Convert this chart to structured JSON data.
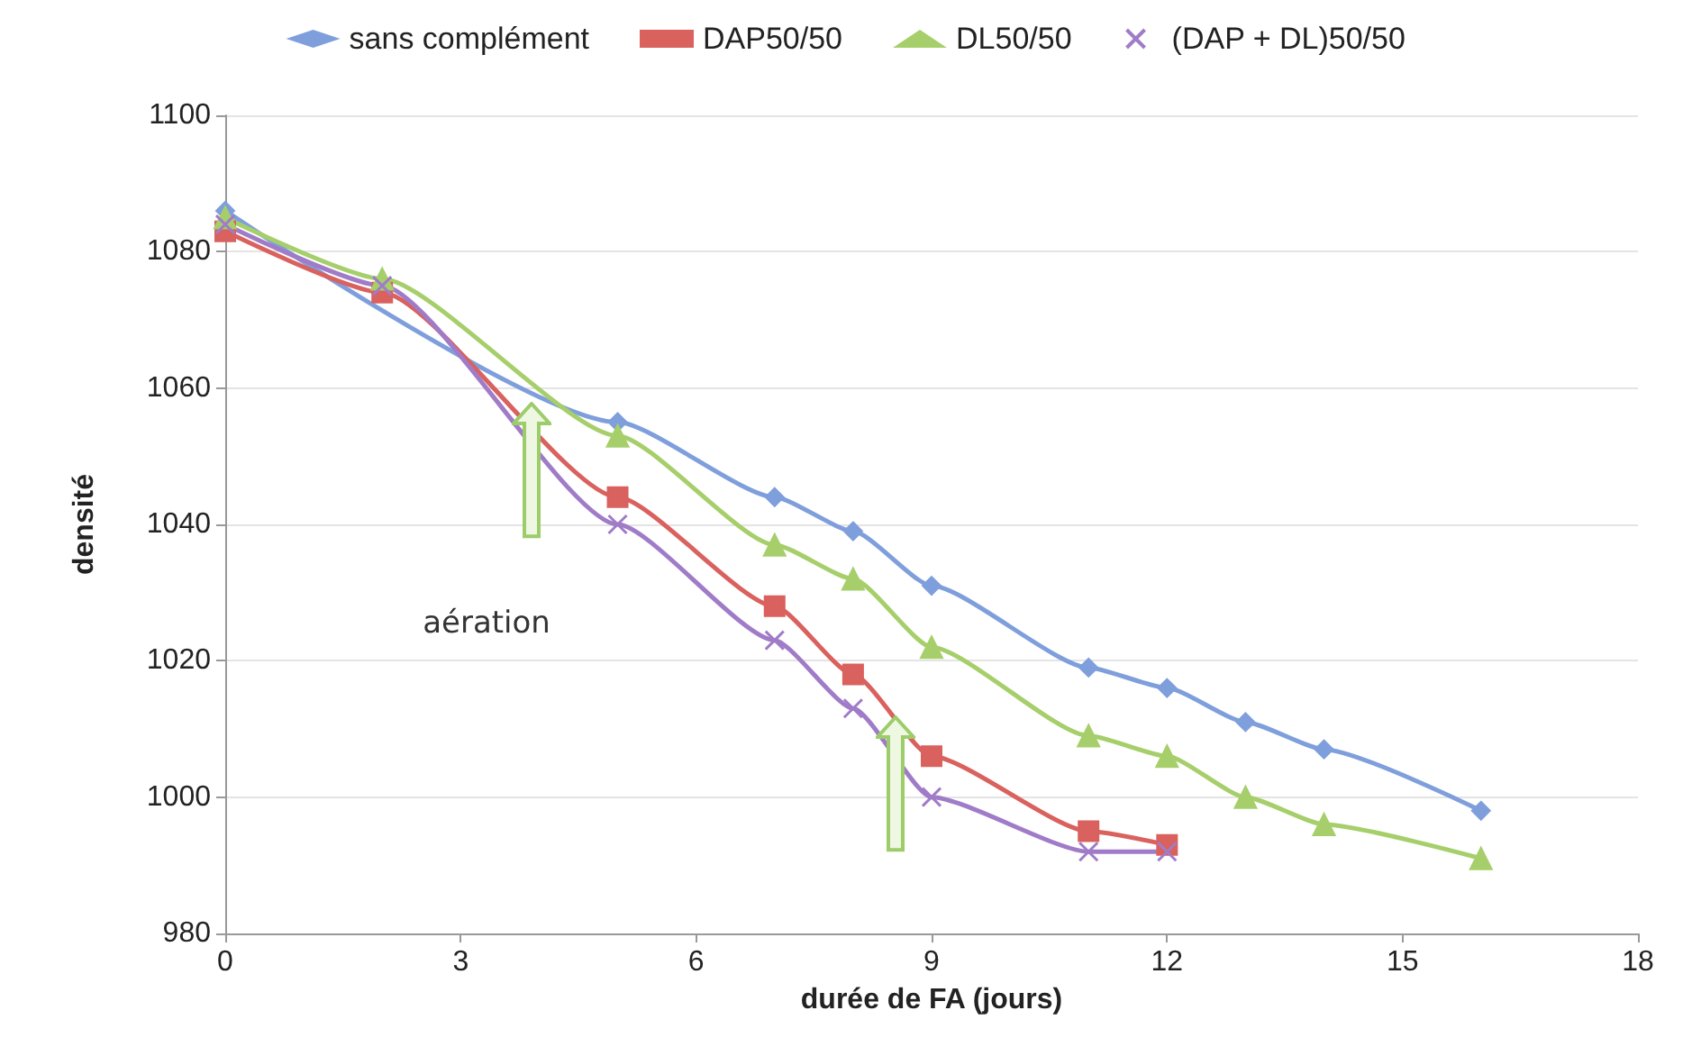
{
  "chart_data": {
    "type": "line",
    "xlabel": "durée de FA (jours)",
    "ylabel": "densité",
    "xlim": [
      0,
      18
    ],
    "xticks": [
      0,
      3,
      6,
      9,
      12,
      15,
      18
    ],
    "ylim": [
      980,
      1100
    ],
    "yticks": [
      980,
      1000,
      1020,
      1040,
      1060,
      1080,
      1100
    ],
    "grid": "y",
    "legend": "top",
    "annotations": [
      "aération"
    ],
    "series": [
      {
        "name": "sans complément",
        "color": "#7f9fdc",
        "marker": "diamond",
        "x": [
          0,
          2,
          5,
          7,
          8,
          9,
          11,
          12,
          13,
          14,
          16
        ],
        "values": [
          1086,
          null,
          1055,
          1044,
          1039,
          1031,
          1019,
          1016,
          1011,
          1007,
          998
        ]
      },
      {
        "name": "DAP50/50",
        "color": "#d9615e",
        "marker": "square",
        "x": [
          0,
          2,
          5,
          7,
          8,
          9,
          11,
          12
        ],
        "values": [
          1083,
          1074,
          1044,
          1028,
          1018,
          1006,
          995,
          993
        ]
      },
      {
        "name": "DL50/50",
        "color": "#a6cf6b",
        "marker": "triangle",
        "x": [
          0,
          2,
          5,
          7,
          8,
          9,
          11,
          12,
          13,
          14,
          16
        ],
        "values": [
          1085,
          1076,
          1053,
          1037,
          1032,
          1022,
          1009,
          1006,
          1000,
          996,
          991
        ]
      },
      {
        "name": "(DAP + DL)50/50",
        "color": "#a07cc8",
        "marker": "cross",
        "x": [
          0,
          2,
          5,
          7,
          8,
          9,
          11,
          12
        ],
        "values": [
          1084,
          1075,
          1040,
          1023,
          1013,
          1000,
          992,
          992
        ]
      }
    ]
  }
}
